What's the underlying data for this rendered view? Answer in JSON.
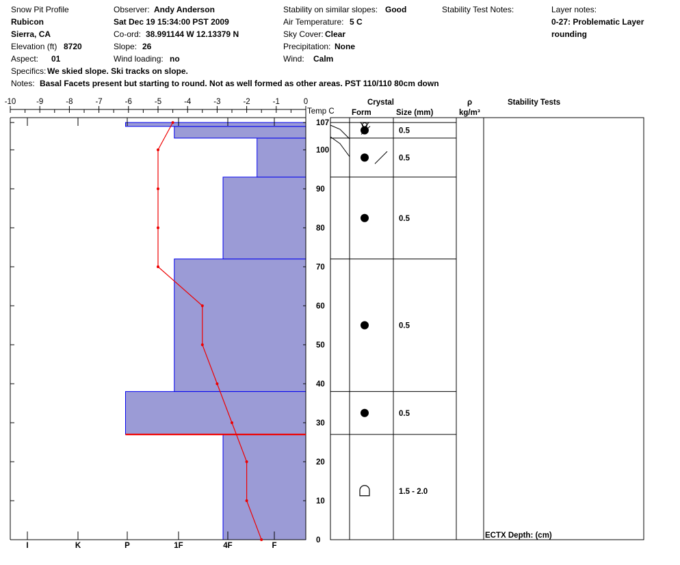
{
  "header": {
    "title": "Snow Pit Profile",
    "location": "Rubicon",
    "region": "Sierra, CA",
    "elevation_label": "Elevation (ft)",
    "elevation_value": "8720",
    "aspect_label": "Aspect:",
    "aspect_value": "01",
    "observer_label": "Observer:",
    "observer_value": "Andy Anderson",
    "datetime": "Sat Dec 19 15:34:00 PST 2009",
    "coord_label": "Co-ord:",
    "coord_value": "38.991144 W 12.13379 N",
    "slope_label": "Slope:",
    "slope_value": "26",
    "wind_loading_label": "Wind loading:",
    "wind_loading_value": "no",
    "stability_label": "Stability on similar slopes:",
    "stability_value": "Good",
    "air_temp_label": "Air Temperature:",
    "air_temp_value": "5 C",
    "sky_label": "Sky Cover:",
    "sky_value": "Clear",
    "precip_label": "Precipitation:",
    "precip_value": "None",
    "wind_label": "Wind:",
    "wind_value": "Calm",
    "stability_test_notes_label": "Stability Test Notes:",
    "layer_notes_label": "Layer notes:",
    "layer_notes_line1": "0-27: Problematic Layer",
    "layer_notes_line2": "rounding",
    "specifics_label": "Specifics:",
    "specifics_value": "We skied slope. Ski tracks on slope.",
    "notes_label": "Notes:",
    "notes_value": "Basal Facets present but starting  to round. Not as well formed as other areas. PST 110/110 80cm down"
  },
  "columns": {
    "temp": "Temp C",
    "crystal": "Crystal",
    "form": "Form",
    "size": "Size (mm)",
    "rho": "ρ",
    "density_unit": "kg/m³",
    "stability_tests": "Stability Tests",
    "ectx": "ECTX   Depth: (cm)"
  },
  "colors": {
    "hardness_fill": "#9b9bd6",
    "hardness_edge": "#0000ee",
    "temp_line": "#ee0000",
    "problem_line": "#ee0000"
  },
  "chart_data": {
    "type": "snow-pit-profile",
    "title": "Snow Pit Profile",
    "temperature_axis": {
      "label": "Temp C",
      "ticks": [
        -10,
        -9,
        -8,
        -7,
        -6,
        -5,
        -4,
        -3,
        -2,
        -1,
        0
      ],
      "range": [
        -10,
        0
      ]
    },
    "hardness_axis": {
      "ticks": [
        "I",
        "K",
        "P",
        "1F",
        "4F",
        "F"
      ]
    },
    "depth_axis": {
      "range": [
        0,
        107
      ],
      "ticks": [
        0,
        10,
        20,
        30,
        40,
        50,
        60,
        70,
        80,
        90,
        100,
        107
      ]
    },
    "hardness_layers": [
      {
        "bottom": 0,
        "top": 27,
        "temp_edge": -2.8
      },
      {
        "bottom": 27,
        "top": 38,
        "temp_edge": -6.1
      },
      {
        "bottom": 38,
        "top": 72,
        "temp_edge": -4.45
      },
      {
        "bottom": 72,
        "top": 93,
        "temp_edge": -2.8
      },
      {
        "bottom": 93,
        "top": 103,
        "temp_edge": -1.65
      },
      {
        "bottom": 103,
        "top": 106,
        "temp_edge": -4.45
      },
      {
        "bottom": 106,
        "top": 107,
        "temp_edge": -6.1
      }
    ],
    "temperature_profile": [
      {
        "depth": 0,
        "temp": -1.5
      },
      {
        "depth": 10,
        "temp": -2.0
      },
      {
        "depth": 20,
        "temp": -2.0
      },
      {
        "depth": 30,
        "temp": -2.5
      },
      {
        "depth": 40,
        "temp": -3.0
      },
      {
        "depth": 50,
        "temp": -3.5
      },
      {
        "depth": 60,
        "temp": -3.5
      },
      {
        "depth": 70,
        "temp": -5.0
      },
      {
        "depth": 80,
        "temp": -5.0
      },
      {
        "depth": 90,
        "temp": -5.0
      },
      {
        "depth": 100,
        "temp": -5.0
      },
      {
        "depth": 107,
        "temp": -4.5
      }
    ],
    "problem_layer_depth": 27,
    "layer_boundaries": [
      27,
      38,
      72,
      93,
      103,
      107
    ],
    "crystals": [
      {
        "depth": 12.5,
        "form": "depth-hoar",
        "size": "1.5 -   2.0"
      },
      {
        "depth": 32.5,
        "form": "rounded",
        "size": "0.5"
      },
      {
        "depth": 55,
        "form": "rounded",
        "size": "0.5"
      },
      {
        "depth": 82.5,
        "form": "rounded",
        "size": "0.5"
      },
      {
        "depth": 98,
        "form": "rounded-slash",
        "size": "0.5"
      },
      {
        "depth": 105,
        "form": "rounded-mix",
        "size": "0.5"
      },
      {
        "depth": 106.5,
        "form": "surface-hoar-mix",
        "size": ""
      }
    ]
  }
}
